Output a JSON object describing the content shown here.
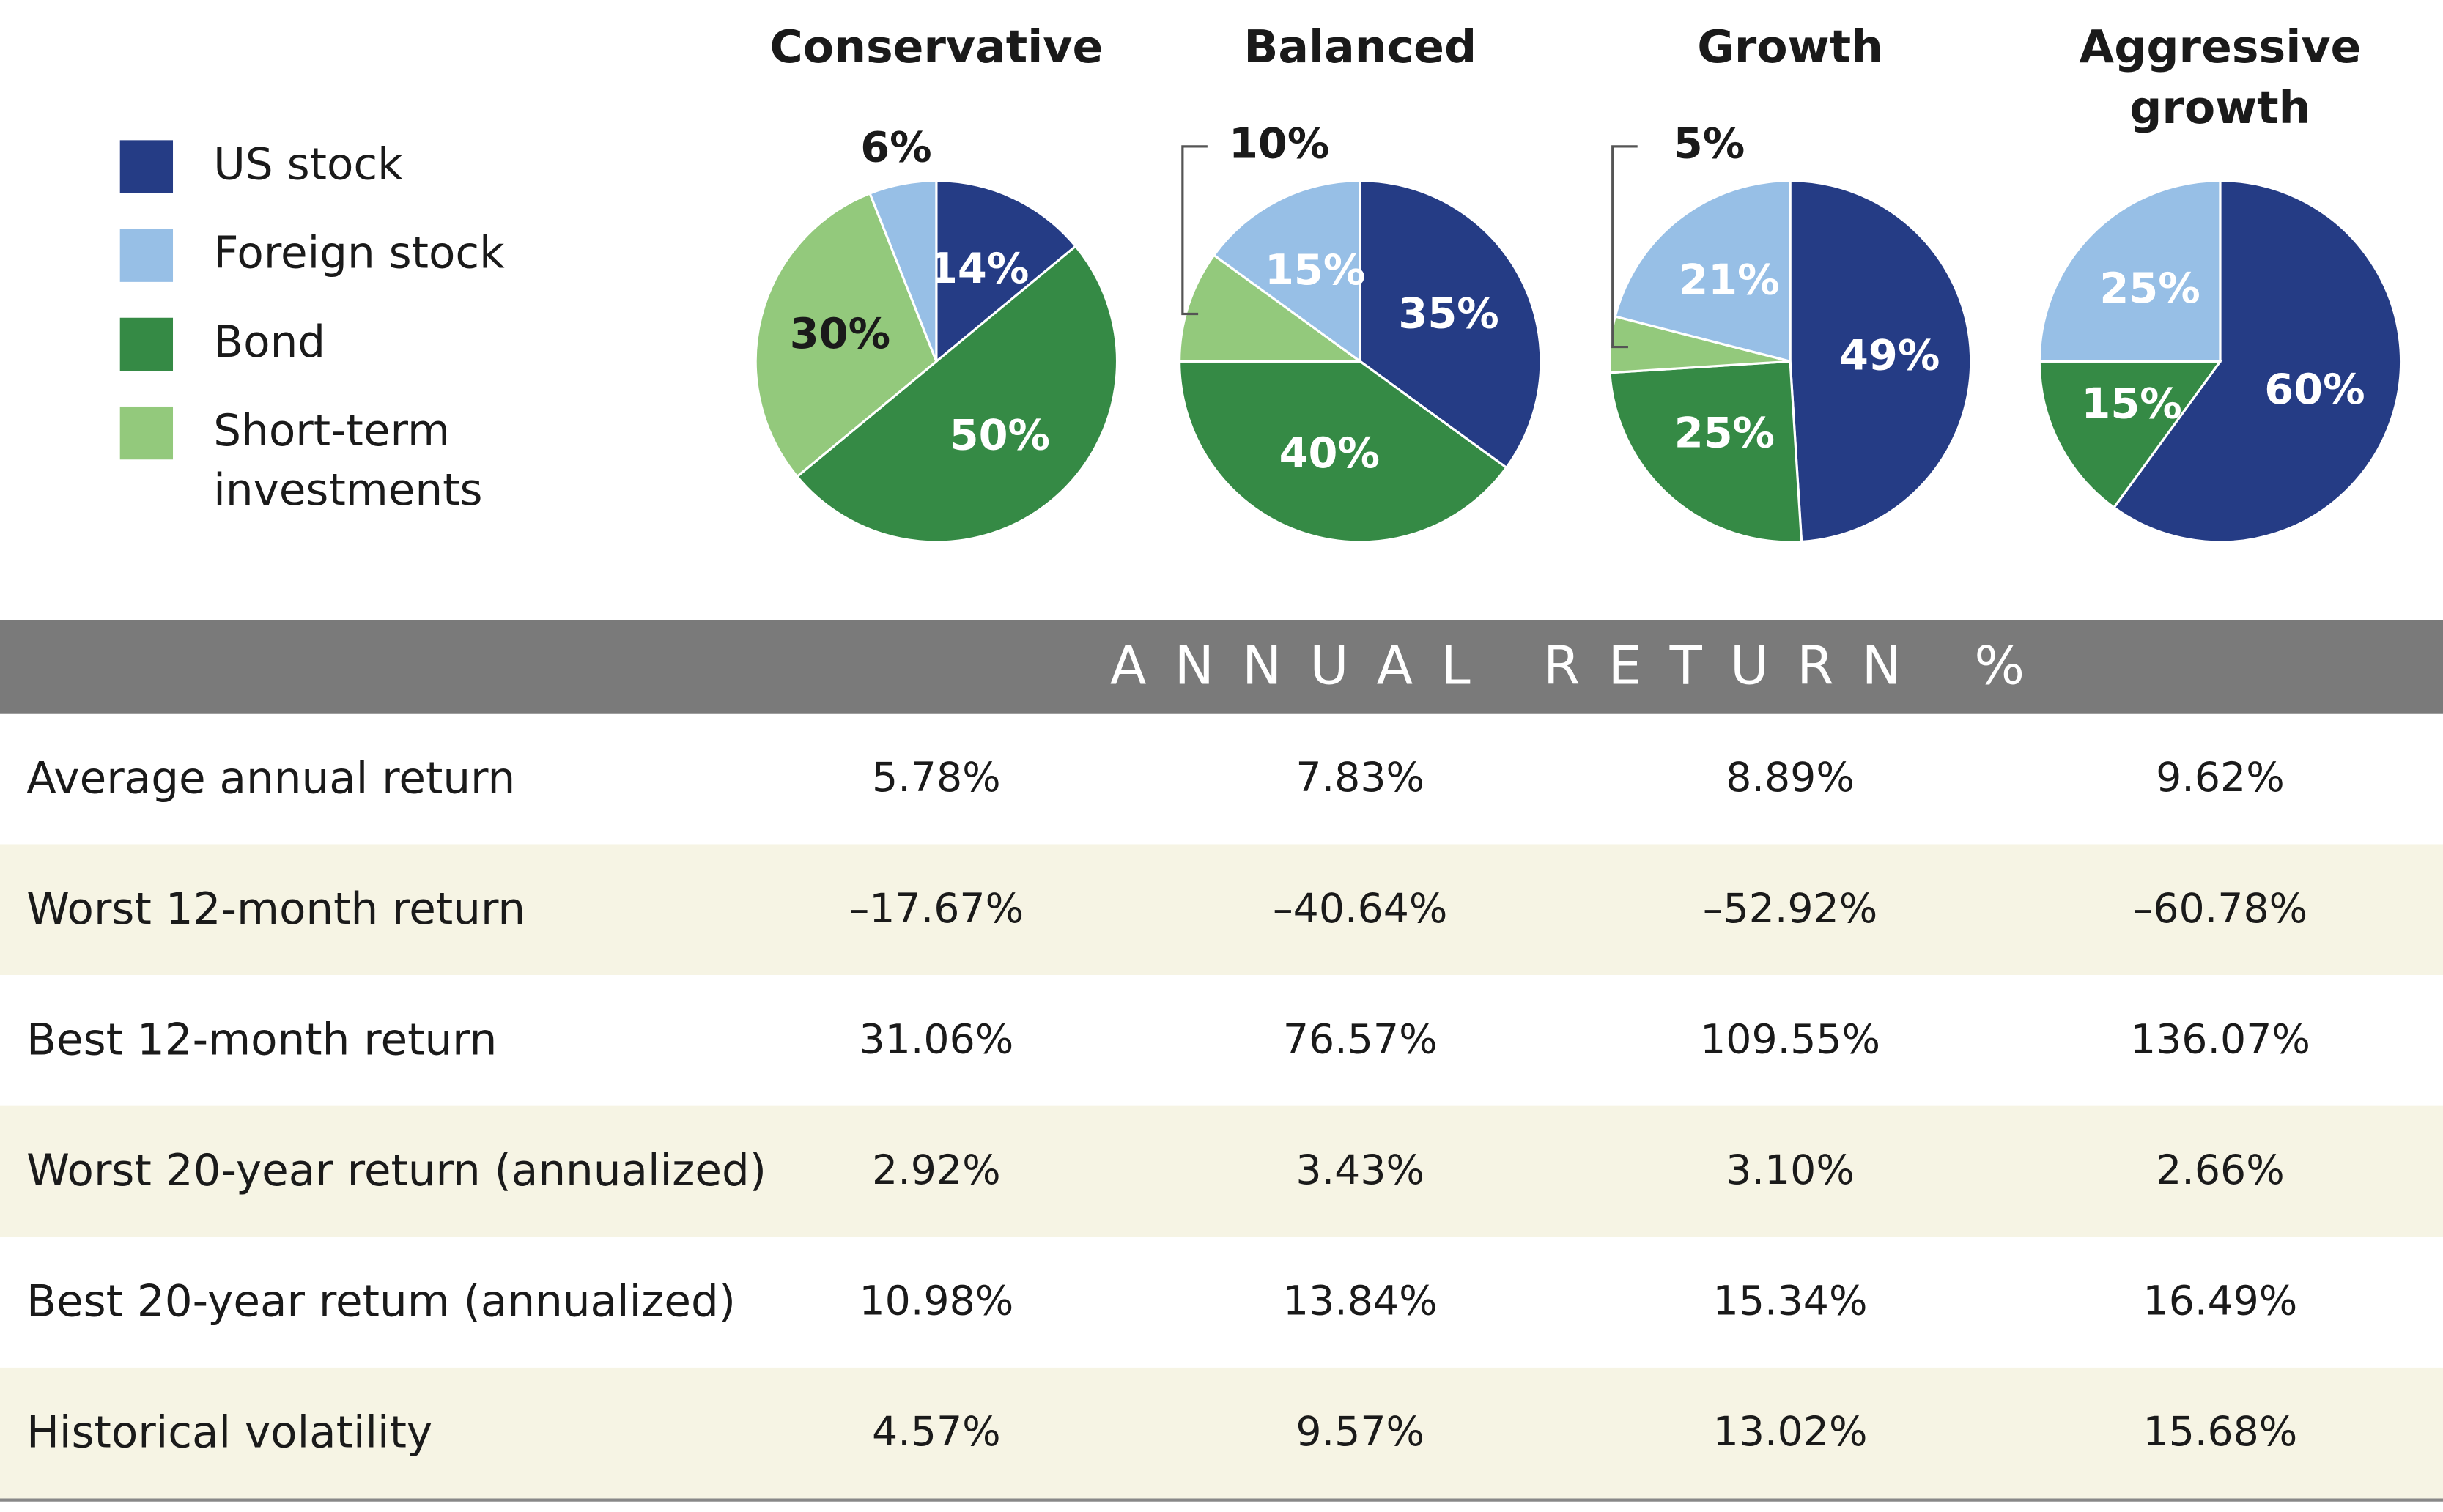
{
  "legend": {
    "labels": [
      "US stock",
      "Foreign stock",
      "Bond",
      "Short-term investments"
    ],
    "colors": [
      "#253c85",
      "#97bfe6",
      "#358a45",
      "#93c97c"
    ]
  },
  "chart_data": [
    {
      "type": "pie",
      "title": "Conservative",
      "values": [
        14,
        6,
        50,
        30
      ],
      "value_labels": [
        "14%",
        "6%",
        "50%",
        "30%"
      ]
    },
    {
      "type": "pie",
      "title": "Balanced",
      "values": [
        35,
        15,
        40,
        10
      ],
      "value_labels": [
        "35%",
        "15%",
        "40%",
        "10%"
      ]
    },
    {
      "type": "pie",
      "title": "Growth",
      "values": [
        49,
        21,
        25,
        5
      ],
      "value_labels": [
        "49%",
        "21%",
        "25%",
        "5%"
      ]
    },
    {
      "type": "pie",
      "title": "Aggressive growth",
      "values": [
        60,
        25,
        15
      ],
      "value_labels": [
        "60%",
        "25%",
        "15%"
      ]
    }
  ],
  "table": {
    "header": "ANNUAL RETURN %",
    "rows": [
      [
        "Average annual return",
        "5.78%",
        "7.83%",
        "8.89%",
        "9.62%"
      ],
      [
        "Worst 12-month return",
        "–17.67%",
        "–40.64%",
        "–52.92%",
        "–60.78%"
      ],
      [
        "Best 12-month return",
        "31.06%",
        "76.57%",
        "109.55%",
        "136.07%"
      ],
      [
        "Worst 20-year return (annualized)",
        "2.92%",
        "3.43%",
        "3.10%",
        "2.66%"
      ],
      [
        "Best 20-year retum (annualized)",
        "10.98%",
        "13.84%",
        "15.34%",
        "16.49%"
      ],
      [
        "Historical volatility",
        "4.57%",
        "9.57%",
        "13.02%",
        "15.68%"
      ]
    ]
  }
}
